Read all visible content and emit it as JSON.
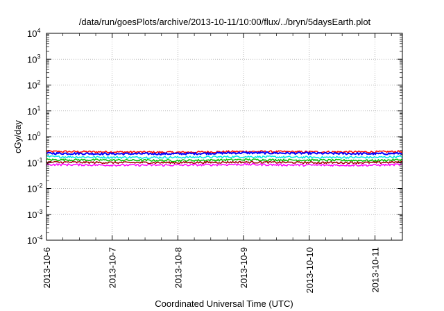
{
  "chart_data": {
    "type": "line",
    "title": "/data/run/goesPlots/archive/2013-10-11/10:00/flux/../bryn/5daysEarth.plot",
    "xlabel": "Coordinated Universal Time (UTC)",
    "ylabel": "cGy/day",
    "yscale": "log",
    "ylim": [
      0.0001,
      10000
    ],
    "xlim": [
      "2013-10-06",
      "2013-10-11 10:00"
    ],
    "x_ticks": [
      "2013-10-6",
      "2013-10-7",
      "2013-10-8",
      "2013-10-9",
      "2013-10-10",
      "2013-10-11"
    ],
    "y_ticks": [
      {
        "base": "10",
        "exp": "-4"
      },
      {
        "base": "10",
        "exp": "-3"
      },
      {
        "base": "10",
        "exp": "-2"
      },
      {
        "base": "10",
        "exp": "-1"
      },
      {
        "base": "10",
        "exp": "0"
      },
      {
        "base": "10",
        "exp": "1"
      },
      {
        "base": "10",
        "exp": "2"
      },
      {
        "base": "10",
        "exp": "3"
      },
      {
        "base": "10",
        "exp": "4"
      }
    ],
    "grid": true,
    "legend": "none",
    "series": [
      {
        "color": "#ff0000",
        "values": [
          0.27,
          0.26,
          0.25,
          0.27,
          0.26,
          0.26,
          0.27
        ]
      },
      {
        "color": "#0000ff",
        "values": [
          0.23,
          0.22,
          0.22,
          0.24,
          0.23,
          0.22,
          0.23
        ]
      },
      {
        "color": "#00e5e5",
        "values": [
          0.17,
          0.16,
          0.16,
          0.17,
          0.16,
          0.16,
          0.17
        ]
      },
      {
        "color": "#00c000",
        "values": [
          0.13,
          0.125,
          0.12,
          0.13,
          0.125,
          0.12,
          0.13
        ]
      },
      {
        "color": "#a00000",
        "values": [
          0.105,
          0.1,
          0.1,
          0.105,
          0.1,
          0.1,
          0.105
        ]
      },
      {
        "color": "#ff00ff",
        "values": [
          0.085,
          0.08,
          0.08,
          0.085,
          0.08,
          0.08,
          0.085
        ]
      }
    ],
    "x_values": [
      "2013-10-6",
      "2013-10-7",
      "2013-10-8",
      "2013-10-9",
      "2013-10-10",
      "2013-10-11",
      "2013-10-11 10:00"
    ]
  }
}
